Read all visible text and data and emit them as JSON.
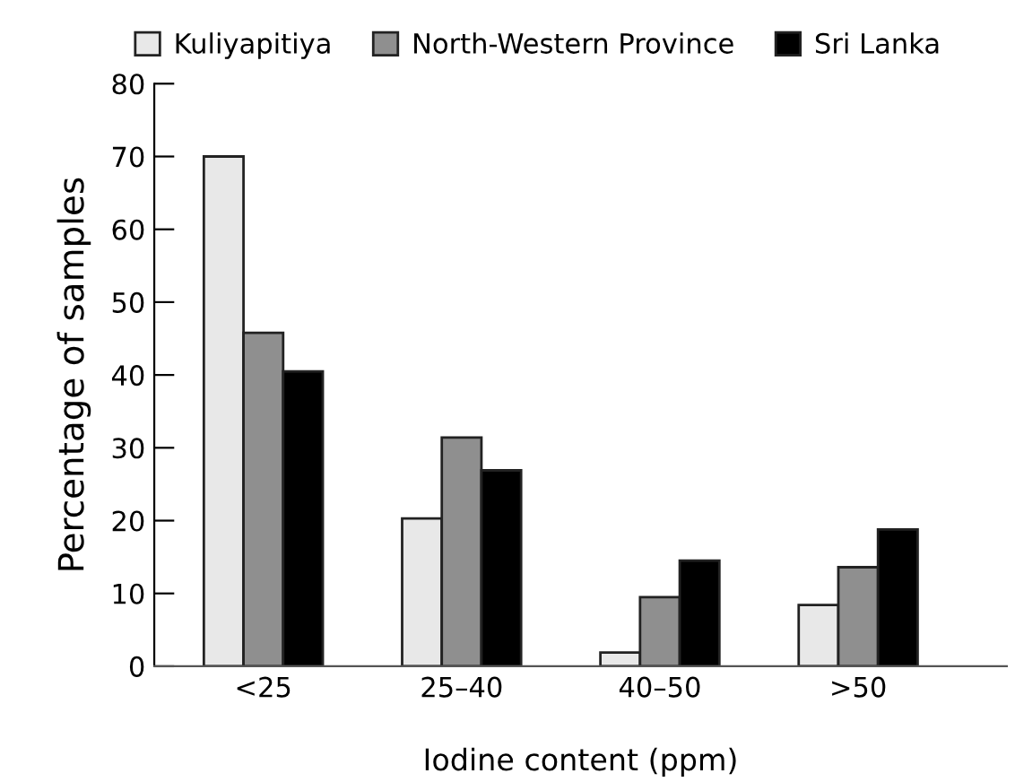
{
  "chart_data": {
    "type": "bar",
    "xlabel": "Iodine content (ppm)",
    "ylabel": "Percentage of samples",
    "categories": [
      "<25",
      "25–40",
      "40–50",
      ">50"
    ],
    "series": [
      {
        "name": "Kuliyapitiya",
        "color": "#e8e8e8",
        "values": [
          70,
          20.3,
          1.9,
          8.4
        ]
      },
      {
        "name": "North-Western Province",
        "color": "#8f8f8f",
        "values": [
          45.8,
          31.4,
          9.5,
          13.6
        ]
      },
      {
        "name": "Sri Lanka",
        "color": "#000000",
        "values": [
          40.5,
          26.9,
          14.5,
          18.8
        ]
      }
    ],
    "ylim": [
      0,
      80
    ],
    "yticks": [
      0,
      10,
      20,
      30,
      40,
      50,
      60,
      70,
      80
    ],
    "grid": false,
    "legend": "top"
  }
}
